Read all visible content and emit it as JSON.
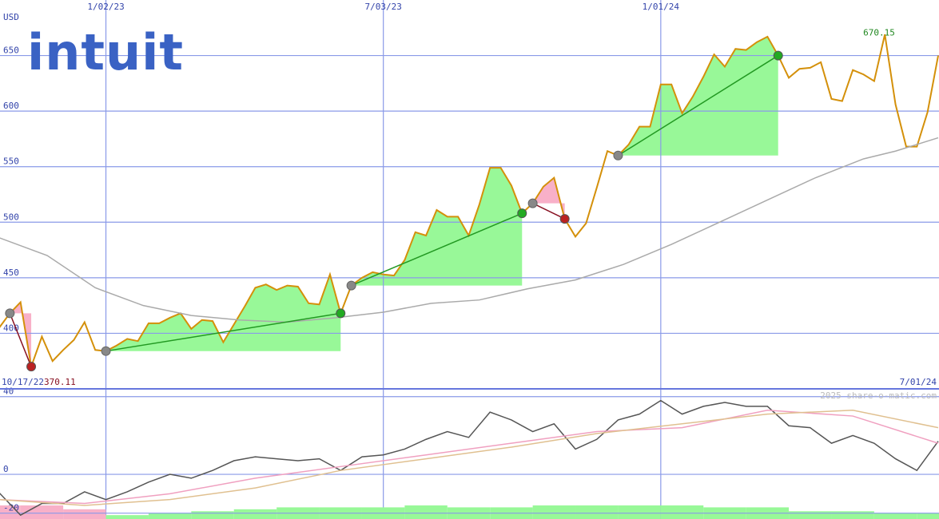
{
  "logo": "intuit",
  "watermark": "2025 share-o-matic.com",
  "chart_data": [
    {
      "type": "line",
      "unit_label": "USD",
      "xlim": [
        0,
        88
      ],
      "xticks": [
        {
          "value": 10,
          "label": "1/02/23"
        },
        {
          "value": 36,
          "label": "7/03/23"
        },
        {
          "value": 62,
          "label": "1/01/24"
        }
      ],
      "date_range": [
        "10/17/22",
        "7/01/24"
      ],
      "ylim": [
        350,
        700
      ],
      "yticks": [
        400,
        450,
        500,
        550,
        600,
        650
      ],
      "grid": true,
      "x": [
        0,
        1,
        2,
        3,
        4,
        5,
        6,
        7,
        8,
        9,
        10,
        11,
        12,
        13,
        14,
        15,
        16,
        17,
        18,
        19,
        20,
        21,
        22,
        23,
        24,
        25,
        26,
        27,
        28,
        29,
        30,
        31,
        32,
        33,
        34,
        35,
        36,
        37,
        38,
        39,
        40,
        41,
        42,
        43,
        44,
        45,
        46,
        47,
        48,
        49,
        50,
        51,
        52,
        53,
        54,
        55,
        56,
        57,
        58,
        59,
        60,
        61,
        62,
        63,
        64,
        65,
        66,
        67,
        68,
        69,
        70,
        71,
        72,
        73,
        74,
        75,
        76,
        77,
        78,
        79,
        80,
        81,
        82,
        83,
        84,
        85,
        86,
        87,
        88
      ],
      "series": [
        {
          "name": "price",
          "color": "#d4900a",
          "values": [
            405,
            418,
            428,
            370,
            397,
            375,
            385,
            394,
            410,
            385,
            384,
            389,
            395,
            393,
            409,
            409,
            414,
            418,
            404,
            412,
            411,
            392,
            408,
            424,
            441,
            444,
            439,
            443,
            442,
            427,
            426,
            453,
            418,
            443,
            450,
            455,
            453,
            452,
            466,
            491,
            488,
            511,
            505,
            505,
            488,
            516,
            549,
            549,
            533,
            508,
            517,
            532,
            540,
            503,
            487,
            499,
            531,
            564,
            560,
            570,
            586,
            586,
            624,
            624,
            598,
            613,
            631,
            651,
            640,
            656,
            655,
            662,
            667,
            650,
            630,
            638,
            639,
            644,
            611,
            609,
            637,
            633,
            627,
            669,
            606,
            568,
            568,
            599,
            650
          ]
        },
        {
          "name": "moving average",
          "color": "#aaaaaa",
          "x": [
            0,
            4.5,
            9,
            13.5,
            18,
            22.5,
            27,
            31.5,
            36,
            40.5,
            45,
            49.5,
            54,
            58.5,
            63,
            67.5,
            72,
            76.5,
            81,
            84,
            88
          ],
          "values": [
            486,
            470,
            441,
            425,
            416,
            412,
            410,
            414,
            419,
            427,
            430,
            440,
            448,
            462,
            480,
            500,
            520,
            540,
            557,
            564,
            576
          ]
        }
      ],
      "trades": [
        {
          "start": [
            1,
            418
          ],
          "end": [
            3,
            370
          ]
        },
        {
          "start": [
            10,
            384
          ],
          "end": [
            32,
            418
          ]
        },
        {
          "start": [
            33,
            443
          ],
          "end": [
            49,
            508
          ]
        },
        {
          "start": [
            50,
            517
          ],
          "end": [
            53,
            503
          ]
        },
        {
          "start": [
            58,
            560
          ],
          "end": [
            73,
            650
          ]
        }
      ],
      "annotations": [
        {
          "text": "670.15",
          "value": 670.15
        },
        {
          "text": "370.11",
          "value": 370.11
        }
      ]
    },
    {
      "type": "line",
      "xlim": [
        0,
        88
      ],
      "ylim": [
        -23,
        44
      ],
      "yticks": [
        40,
        0,
        -20
      ],
      "grid": true,
      "series": [
        {
          "name": "oscillator",
          "color": "#555555",
          "x": [
            0,
            2,
            4,
            6,
            8,
            10,
            12,
            14,
            16,
            18,
            20,
            22,
            24,
            26,
            28,
            30,
            32,
            34,
            36,
            38,
            40,
            42,
            44,
            46,
            48,
            50,
            52,
            54,
            56,
            58,
            60,
            62,
            64,
            66,
            68,
            70,
            72,
            74,
            76,
            78,
            80,
            82,
            84,
            86,
            88
          ],
          "values": [
            -9.5,
            -21,
            -15,
            -15,
            -9,
            -13,
            -9,
            -4,
            0,
            -2,
            2,
            7,
            9,
            8,
            7,
            8,
            2,
            9,
            10,
            13,
            18,
            22,
            19,
            32,
            28,
            22,
            26,
            13,
            18,
            28,
            31,
            38,
            31,
            35,
            37,
            35,
            35,
            25,
            24,
            16,
            20,
            16,
            8,
            2,
            17
          ]
        },
        {
          "name": "fast average",
          "color": "#f0a0c0",
          "x": [
            0,
            8,
            16,
            24,
            32,
            40,
            48,
            56,
            64,
            72,
            80,
            88
          ],
          "values": [
            -13,
            -15,
            -10,
            -2,
            4,
            10,
            16,
            22,
            24,
            33,
            30,
            16
          ]
        },
        {
          "name": "slow average",
          "color": "#e0c090",
          "x": [
            0,
            8,
            16,
            24,
            32,
            40,
            48,
            56,
            64,
            72,
            80,
            88
          ],
          "values": [
            -13,
            -16,
            -13,
            -7,
            2,
            8,
            14,
            21,
            26,
            31,
            33,
            24
          ]
        }
      ],
      "bars": {
        "x": [
          0,
          4,
          8,
          12,
          16,
          20,
          24,
          28,
          32,
          36,
          40,
          44,
          48,
          52,
          56,
          60,
          64,
          68,
          72,
          76,
          80,
          84,
          88
        ],
        "values": [
          -16,
          -16,
          -18,
          -21,
          -20,
          -19,
          -18,
          -17,
          -17,
          -17,
          -16,
          -17,
          -17,
          -16,
          -16,
          -16,
          -16,
          -17,
          -17,
          -19,
          -19,
          -20,
          -20
        ],
        "colors": [
          "#f8b0c8",
          "#f8b0c8",
          "#f8b0c8",
          "#98f898",
          "#98f898",
          "#98f898",
          "#98f898",
          "#98f898",
          "#98f898",
          "#98f898",
          "#98f898",
          "#98f898",
          "#98f898",
          "#98f898",
          "#98f898",
          "#98f898",
          "#98f898",
          "#98f898",
          "#98f898",
          "#98f898",
          "#98f898",
          "#98f898",
          "#98f898"
        ]
      }
    }
  ]
}
